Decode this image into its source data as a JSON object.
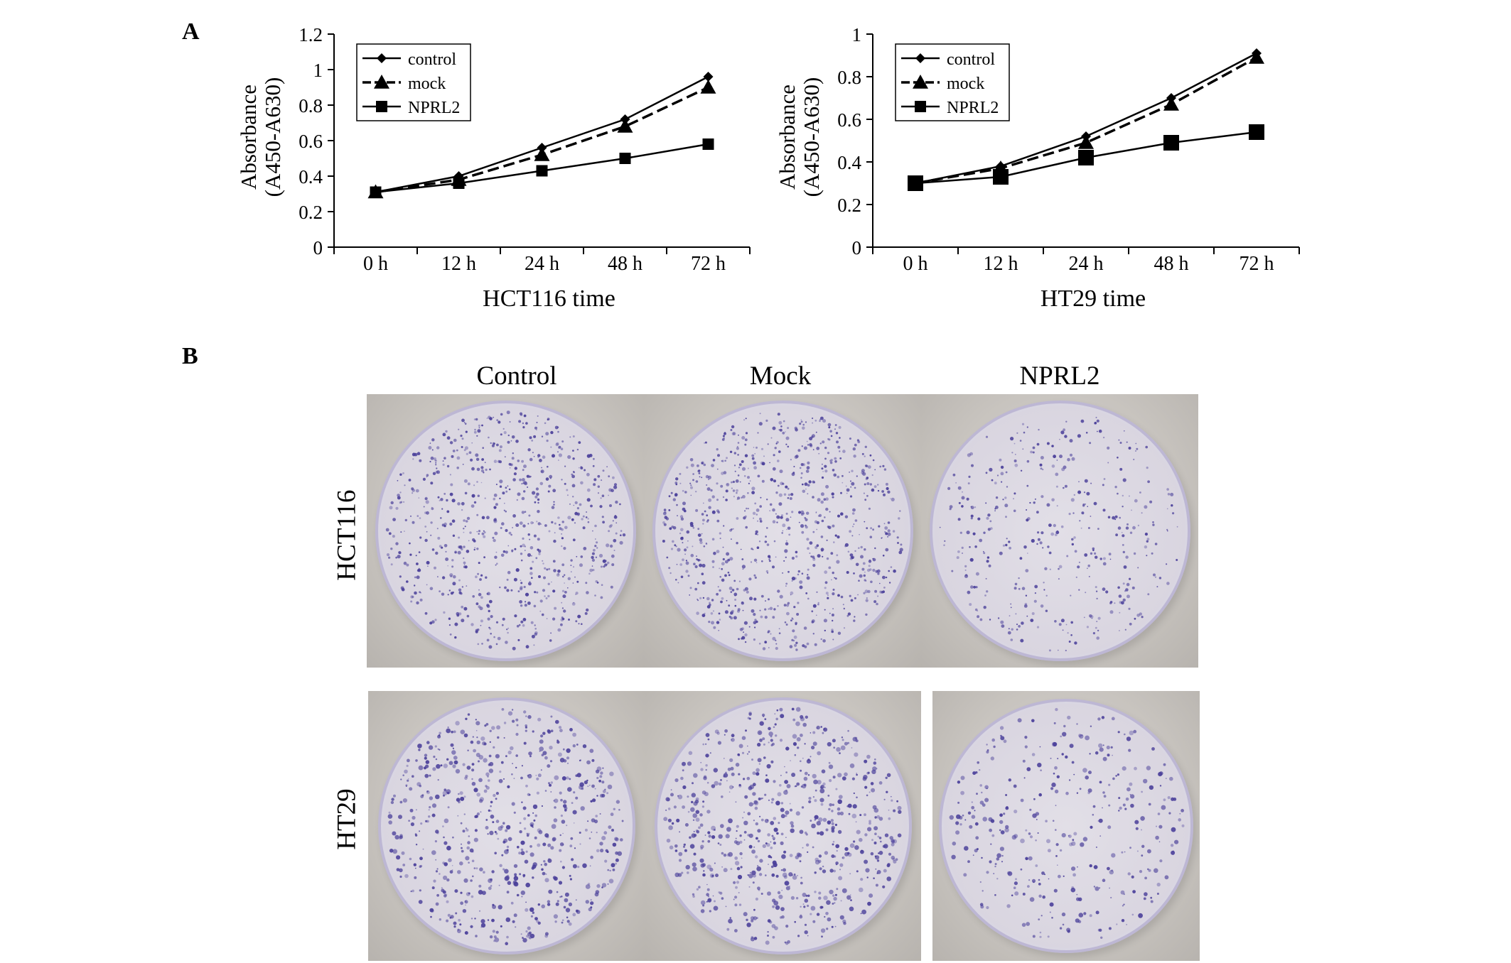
{
  "figure": {
    "panel_a_letter": "A",
    "panel_b_letter": "B"
  },
  "chart_data": [
    {
      "type": "line",
      "title": "",
      "xlabel": "HCT116 time",
      "ylabel_line1": "Absorbance",
      "ylabel_line2": "(A450-A630)",
      "categories": [
        "0 h",
        "12 h",
        "24 h",
        "48 h",
        "72 h"
      ],
      "ylim": [
        0,
        1.2
      ],
      "yticks": [
        "0",
        "0.2",
        "0.4",
        "0.6",
        "0.8",
        "1",
        "1.2"
      ],
      "ytick_values": [
        0,
        0.2,
        0.4,
        0.6,
        0.8,
        1.0,
        1.2
      ],
      "grid": false,
      "legend_position": "top-left",
      "series": [
        {
          "name": "control",
          "marker": "diamond",
          "dash": "solid",
          "values": [
            0.31,
            0.4,
            0.56,
            0.72,
            0.96
          ]
        },
        {
          "name": "mock",
          "marker": "triangle",
          "dash": "dashed",
          "values": [
            0.31,
            0.38,
            0.52,
            0.68,
            0.9
          ]
        },
        {
          "name": "NPRL2",
          "marker": "square",
          "dash": "solid",
          "values": [
            0.31,
            0.36,
            0.43,
            0.5,
            0.58
          ]
        }
      ]
    },
    {
      "type": "line",
      "title": "",
      "xlabel": "HT29 time",
      "ylabel_line1": "Absorbance",
      "ylabel_line2": "(A450-A630)",
      "categories": [
        "0 h",
        "12 h",
        "24 h",
        "48 h",
        "72 h"
      ],
      "ylim": [
        0,
        1.0
      ],
      "yticks": [
        "0",
        "0.2",
        "0.4",
        "0.6",
        "0.8",
        "1"
      ],
      "ytick_values": [
        0,
        0.2,
        0.4,
        0.6,
        0.8,
        1.0
      ],
      "grid": false,
      "legend_position": "top-left",
      "series": [
        {
          "name": "control",
          "marker": "diamond",
          "dash": "solid",
          "values": [
            0.3,
            0.38,
            0.52,
            0.7,
            0.91
          ]
        },
        {
          "name": "mock",
          "marker": "triangle",
          "dash": "dashed",
          "values": [
            0.3,
            0.37,
            0.49,
            0.67,
            0.89
          ]
        },
        {
          "name": "NPRL2",
          "marker": "square",
          "dash": "solid",
          "values": [
            0.3,
            0.33,
            0.42,
            0.49,
            0.54
          ]
        }
      ]
    }
  ],
  "panel_b": {
    "column_labels": [
      "Control",
      "Mock",
      "NPRL2"
    ],
    "row_labels": [
      "HCT116",
      "HT29"
    ],
    "colony_color": "#4a3f9a",
    "colony_density": [
      [
        0.85,
        0.95,
        0.45
      ],
      [
        0.75,
        0.8,
        0.4
      ]
    ]
  }
}
